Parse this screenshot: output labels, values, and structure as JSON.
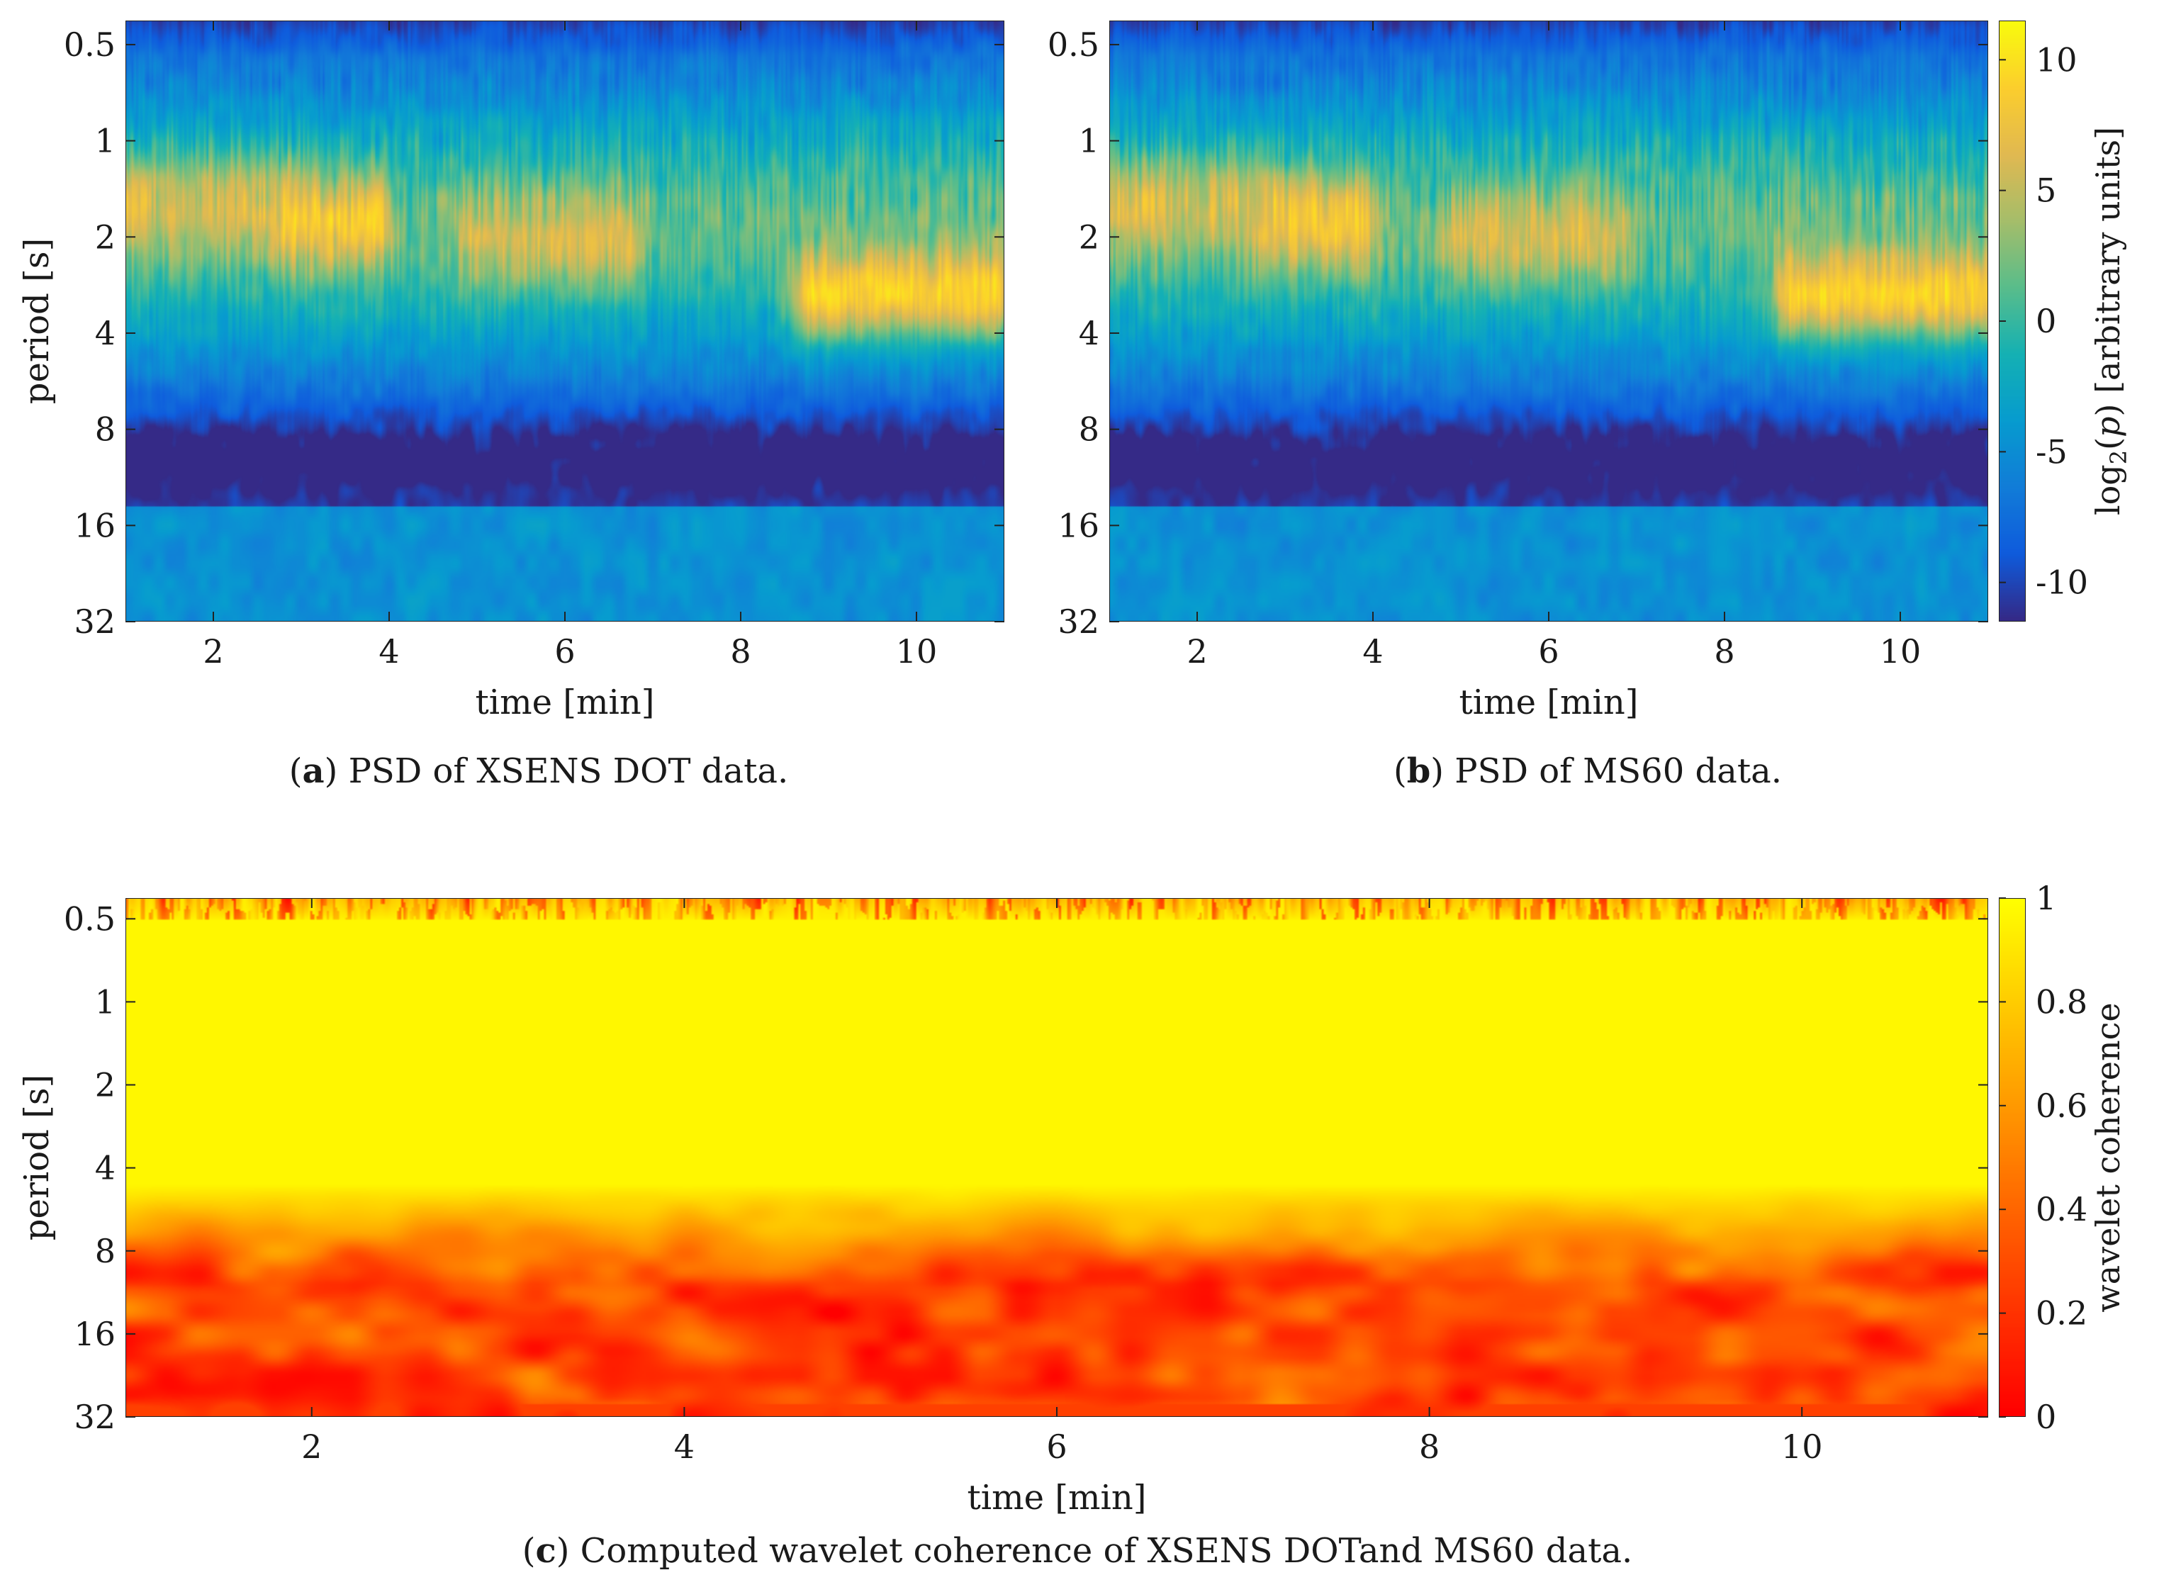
{
  "chart_data": [
    {
      "panel": "a",
      "type": "heatmap",
      "title": "",
      "xlabel": "time [min]",
      "ylabel": "period [s]",
      "xlim": [
        1,
        11
      ],
      "xticks": [
        2,
        4,
        6,
        8,
        10
      ],
      "ylim_log2": [
        -1.25,
        5
      ],
      "yticks": [
        0.5,
        1,
        2,
        4,
        8,
        16,
        32
      ],
      "ytick_labels": [
        "0.5",
        "1",
        "2",
        "4",
        "8",
        "16",
        "32"
      ],
      "colormap": "parula",
      "colorbar": null,
      "features": [
        {
          "period_s": 1.6,
          "time_min": [
            1,
            2.7
          ],
          "level": 6
        },
        {
          "period_s": 1.8,
          "time_min": [
            2.9,
            3.8
          ],
          "level": 8
        },
        {
          "period_s": 2.0,
          "time_min": [
            5.0,
            6.7
          ],
          "level": 6
        },
        {
          "period_s": 3.0,
          "time_min": [
            8.8,
            10.9
          ],
          "level": 9
        },
        {
          "period_s": 10.0,
          "time_min": [
            1,
            11
          ],
          "level": -10
        }
      ]
    },
    {
      "panel": "b",
      "type": "heatmap",
      "title": "",
      "xlabel": "time [min]",
      "ylabel": "",
      "xlim": [
        1,
        11
      ],
      "xticks": [
        2,
        4,
        6,
        8,
        10
      ],
      "ylim_log2": [
        -1.25,
        5
      ],
      "yticks": [
        0.5,
        1,
        2,
        4,
        8,
        16,
        32
      ],
      "ytick_labels": [
        "0.5",
        "1",
        "2",
        "4",
        "8",
        "16",
        "32"
      ],
      "colormap": "parula",
      "colorbar": {
        "label": "log2(p) [arbitrary units]",
        "range": [
          -11.5,
          11.5
        ],
        "ticks": [
          -10,
          -5,
          0,
          5,
          10
        ],
        "tick_labels": [
          "-10",
          "-5",
          "0",
          "5",
          "10"
        ]
      }
    },
    {
      "panel": "c",
      "type": "heatmap",
      "title": "",
      "xlabel": "time [min]",
      "ylabel": "period [s]",
      "xlim": [
        1,
        11
      ],
      "xticks": [
        2,
        4,
        6,
        8,
        10
      ],
      "ylim_log2": [
        -1.25,
        5
      ],
      "yticks": [
        0.5,
        1,
        2,
        4,
        8,
        16,
        32
      ],
      "ytick_labels": [
        "0.5",
        "1",
        "2",
        "4",
        "8",
        "16",
        "32"
      ],
      "colormap": "autumn",
      "colorbar": {
        "label": "wavelet coherence",
        "range": [
          0,
          1
        ],
        "ticks": [
          0,
          0.2,
          0.4,
          0.6,
          0.8,
          1
        ],
        "tick_labels": [
          "0",
          "0.2",
          "0.4",
          "0.6",
          "0.8",
          "1"
        ]
      }
    }
  ],
  "captions": {
    "a": {
      "label": "a",
      "pre": ") PSD of ",
      "brand_x": "X",
      "brand_rest": "SENS",
      "post": " DOT data."
    },
    "b": {
      "label": "b",
      "pre": ") PSD of MS60 data."
    },
    "c": {
      "label": "c",
      "pre": ") Computed wavelet coherence of ",
      "brand_x": "X",
      "brand_rest": "SENS",
      "post": " DOTand MS60 data."
    }
  }
}
